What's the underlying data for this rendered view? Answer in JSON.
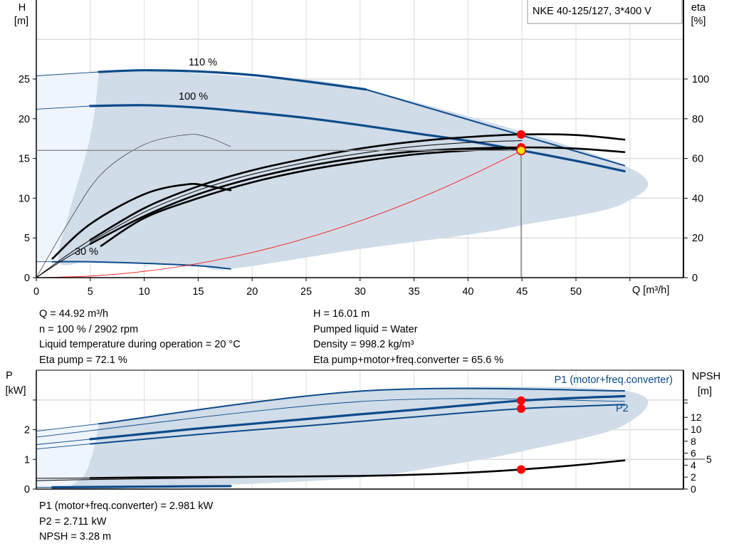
{
  "colors": {
    "curve_blue": "#0d4b8a",
    "shade": "#d0dce8",
    "shade_light": "#eef5fc",
    "operating_point": "#ff0000",
    "operating_point_fill": "#ffe000",
    "system_curve": "#ff0000",
    "efficiency": "#000000",
    "grid": "#dcdcdc"
  },
  "chart_data": [
    {
      "type": "line",
      "title": "NKE 40-125/127, 3*400 V",
      "xlabel": "Q [m³/h]",
      "ylabel_main": "H",
      "ylabel_unit": "[m]",
      "y2label_main": "eta",
      "y2label_unit": "[%]",
      "xlim": [
        0,
        60
      ],
      "ylim": [
        0,
        35
      ],
      "y2lim": [
        0,
        125
      ],
      "xticks": [
        0,
        5,
        10,
        15,
        20,
        25,
        30,
        35,
        40,
        45,
        50
      ],
      "yticks": [
        0,
        5,
        10,
        15,
        20,
        25
      ],
      "y2ticks": [
        0,
        20,
        40,
        60,
        80,
        100
      ],
      "grid": true,
      "shaded_operating_range": {
        "axis": "H",
        "points": [
          [
            5.8,
            25.9
          ],
          [
            10,
            26.1
          ],
          [
            20,
            25.2
          ],
          [
            30.5,
            23.7
          ],
          [
            54.5,
            14.1
          ],
          [
            54.5,
            9.4
          ],
          [
            45,
            6.6
          ],
          [
            40,
            5.4
          ],
          [
            30,
            3.6
          ],
          [
            18,
            1.1
          ],
          [
            15,
            1.5
          ],
          [
            10,
            1.8
          ],
          [
            5,
            2.0
          ],
          [
            2.1,
            2.0
          ],
          [
            3.0,
            8
          ],
          [
            4.5,
            15
          ],
          [
            5.3,
            20
          ],
          [
            5.8,
            25.9
          ]
        ],
        "light_points": [
          [
            0,
            2.0
          ],
          [
            0,
            25.4
          ],
          [
            5.8,
            25.9
          ],
          [
            5.3,
            20
          ],
          [
            4.5,
            15
          ],
          [
            3.0,
            8
          ],
          [
            2.1,
            2.0
          ]
        ]
      },
      "series": [
        {
          "name": "110 %",
          "axis": "H",
          "style": "blue-thick",
          "x": [
            5.8,
            10,
            15,
            20,
            25,
            30.5
          ],
          "y": [
            25.9,
            26.1,
            25.95,
            25.5,
            24.7,
            23.7
          ]
        },
        {
          "axis": "H",
          "style": "blue-mid",
          "x": [
            30.5,
            54.5
          ],
          "y": [
            23.7,
            14.1
          ]
        },
        {
          "axis": "H",
          "style": "blue-thin",
          "x": [
            0,
            5.8
          ],
          "y": [
            25.4,
            25.9
          ]
        },
        {
          "name": "100 %",
          "axis": "H",
          "style": "blue-thick",
          "x": [
            5,
            10,
            15,
            20,
            25,
            30,
            35,
            40,
            45,
            50,
            54.5
          ],
          "y": [
            21.6,
            21.7,
            21.4,
            20.8,
            20.1,
            19.2,
            18.2,
            17.2,
            16.0,
            14.7,
            13.4
          ]
        },
        {
          "axis": "H",
          "style": "blue-thin",
          "x": [
            0,
            5
          ],
          "y": [
            21.2,
            21.6
          ]
        },
        {
          "name": "30 %",
          "axis": "H",
          "style": "blue-mid",
          "x": [
            1.5,
            5,
            10,
            15,
            18
          ],
          "y": [
            2.0,
            2.0,
            1.8,
            1.5,
            1.1
          ]
        },
        {
          "axis": "H",
          "style": "blue-thin",
          "x": [
            0,
            1.5
          ],
          "y": [
            2.0,
            2.0
          ]
        },
        {
          "axis": "eta",
          "style": "black-thick",
          "x": [
            5,
            10,
            15,
            20,
            25,
            30,
            35,
            40,
            45,
            50,
            54.5
          ],
          "y": [
            19,
            35,
            46,
            54,
            60,
            65,
            68.5,
            70.8,
            72.1,
            71.8,
            69.5
          ]
        },
        {
          "axis": "eta",
          "style": "black-thick",
          "x": [
            5,
            10,
            15,
            20,
            25,
            30,
            35,
            40,
            45,
            50,
            54.5
          ],
          "y": [
            17,
            31,
            42,
            50,
            56,
            60.5,
            63.5,
            65,
            65.6,
            65,
            63.2
          ]
        },
        {
          "axis": "eta",
          "style": "black-thin",
          "x": [
            5,
            10,
            15,
            20,
            25,
            30,
            35,
            40,
            45
          ],
          "y": [
            18,
            33,
            44,
            52,
            58,
            62.5,
            66,
            68,
            69
          ]
        },
        {
          "axis": "eta",
          "style": "black-thick",
          "x": [
            6,
            10,
            15,
            20,
            25,
            30,
            35,
            40,
            45
          ],
          "y": [
            16,
            30,
            40,
            48,
            54,
            58.5,
            62,
            64,
            65.2
          ]
        },
        {
          "axis": "eta",
          "style": "black-thin",
          "x": [
            0,
            2.5,
            5
          ],
          "y": [
            0,
            10,
            19
          ]
        },
        {
          "axis": "eta",
          "style": "black-thin",
          "x": [
            0,
            2.5,
            5
          ],
          "y": [
            0,
            9,
            17
          ]
        },
        {
          "axis": "eta",
          "style": "black-thick",
          "x": [
            1.5,
            5,
            10,
            14,
            16,
            18
          ],
          "y": [
            9.6,
            27,
            42,
            47,
            46,
            44
          ]
        },
        {
          "axis": "eta",
          "style": "black-hair",
          "x": [
            0,
            3,
            6,
            10,
            14,
            16,
            18
          ],
          "y": [
            0,
            28,
            52,
            67,
            72,
            70.5,
            66
          ]
        },
        {
          "axis": "H",
          "style": "system-curve",
          "x": [
            0,
            5,
            10,
            15,
            20,
            25,
            30,
            35,
            40,
            45
          ],
          "y": [
            0,
            0.2,
            0.79,
            1.78,
            3.17,
            4.96,
            7.14,
            9.72,
            12.7,
            16.01
          ]
        }
      ],
      "duty_lines": {
        "H": 16.01,
        "Q": 44.92
      },
      "operating_points": [
        {
          "axis": "eta",
          "x": 44.92,
          "y": 72.1
        },
        {
          "axis": "eta",
          "x": 44.92,
          "y": 65.6
        },
        {
          "axis": "H",
          "x": 44.92,
          "y": 16.01
        }
      ]
    },
    {
      "type": "line",
      "xlim": [
        0,
        60
      ],
      "ylim": [
        0,
        4
      ],
      "y2lim": [
        0,
        20
      ],
      "ylabel_main": "P",
      "ylabel_unit": "[kW]",
      "y2label_main": "NPSH",
      "y2label_unit": "[m]",
      "yticks": [
        0,
        1,
        2
      ],
      "yticks_unlabeled": [
        3
      ],
      "y2ticks": [
        0,
        2,
        4,
        5,
        6,
        8,
        10,
        12
      ],
      "y2ticks_unlabeled": [
        14.4,
        14.9
      ],
      "grid": true,
      "shaded_operating_range": {
        "axis": "P",
        "points": [
          [
            5.8,
            2.2
          ],
          [
            30.5,
            3.31
          ],
          [
            54.5,
            3.31
          ],
          [
            54.5,
            2.16
          ],
          [
            45,
            1.27
          ],
          [
            38,
            0.8
          ],
          [
            30.5,
            0.4
          ],
          [
            20,
            0.18
          ],
          [
            10,
            0.06
          ],
          [
            3.5,
            0
          ],
          [
            4.5,
            0.5
          ],
          [
            5.3,
            1.3
          ],
          [
            5.8,
            2.2
          ]
        ],
        "light_points": [
          [
            0,
            0.05
          ],
          [
            0,
            1.95
          ],
          [
            5.8,
            2.2
          ],
          [
            5.3,
            1.3
          ],
          [
            4.5,
            0.5
          ],
          [
            3.5,
            0
          ]
        ]
      },
      "series_labels": {
        "p1": "P1 (motor+freq.converter)",
        "p2": "P2"
      },
      "series": [
        {
          "axis": "P",
          "style": "blue-mid",
          "x": [
            5.8,
            30.5,
            54.5
          ],
          "y": [
            2.2,
            3.31,
            3.31
          ]
        },
        {
          "axis": "P",
          "style": "blue-thin",
          "x": [
            0,
            5.8
          ],
          "y": [
            1.95,
            2.2
          ]
        },
        {
          "axis": "P",
          "style": "blue-thin",
          "x": [
            0,
            30.5,
            54.5
          ],
          "y": [
            1.75,
            2.96,
            2.96
          ]
        },
        {
          "name": "P1 (motor+freq.converter)",
          "axis": "P",
          "style": "blue-thick",
          "x": [
            5,
            10,
            15,
            20,
            25,
            30,
            35,
            40,
            45,
            50,
            54.5
          ],
          "y": [
            1.68,
            1.86,
            2.04,
            2.2,
            2.36,
            2.52,
            2.67,
            2.83,
            2.98,
            3.07,
            3.13
          ]
        },
        {
          "axis": "P",
          "style": "blue-thin",
          "x": [
            0,
            5
          ],
          "y": [
            1.5,
            1.68
          ]
        },
        {
          "name": "P2",
          "axis": "P",
          "style": "blue-mid",
          "x": [
            5,
            10,
            15,
            20,
            25,
            30,
            35,
            40,
            45,
            50,
            54.5
          ],
          "y": [
            1.52,
            1.68,
            1.84,
            1.99,
            2.13,
            2.28,
            2.43,
            2.58,
            2.71,
            2.79,
            2.85
          ]
        },
        {
          "axis": "P",
          "style": "blue-thin",
          "x": [
            0,
            5
          ],
          "y": [
            1.35,
            1.52
          ]
        },
        {
          "axis": "NPSH",
          "style": "black-thick",
          "x": [
            5,
            10,
            20,
            30,
            35,
            40,
            45,
            50,
            54.5
          ],
          "y": [
            1.85,
            1.95,
            2.05,
            2.2,
            2.4,
            2.75,
            3.28,
            4.0,
            4.8
          ]
        },
        {
          "axis": "NPSH",
          "style": "black-thin",
          "x": [
            0,
            5
          ],
          "y": [
            1.8,
            1.85
          ]
        },
        {
          "axis": "NPSH",
          "style": "black-thin",
          "x": [
            0,
            5,
            30
          ],
          "y": [
            1.4,
            1.6,
            2.2
          ]
        },
        {
          "axis": "P",
          "style": "blue-thick",
          "x": [
            1.5,
            18
          ],
          "y": [
            0.06,
            0.1
          ]
        },
        {
          "axis": "P",
          "style": "blue-thin",
          "x": [
            0,
            1.5
          ],
          "y": [
            0.06,
            0.06
          ]
        }
      ],
      "operating_points": [
        {
          "axis": "P",
          "x": 44.92,
          "y": 2.981
        },
        {
          "axis": "P",
          "x": 44.92,
          "y": 2.711
        },
        {
          "axis": "NPSH",
          "x": 44.92,
          "y": 3.28
        }
      ]
    }
  ],
  "info_main": {
    "left": [
      "Q = 44.92 m³/h",
      "n = 100 % / 2902 rpm",
      "Liquid temperature during operation = 20 °C",
      "Eta pump = 72.1 %"
    ],
    "right": [
      "H = 16.01 m",
      "Pumped liquid = Water",
      "Density = 998.2 kg/m³",
      "Eta pump+motor+freq.converter = 65.6 %"
    ]
  },
  "info_power": [
    "P1 (motor+freq.converter) = 2.981 kW",
    "P2 = 2.711 kW",
    "NPSH = 3.28 m"
  ]
}
